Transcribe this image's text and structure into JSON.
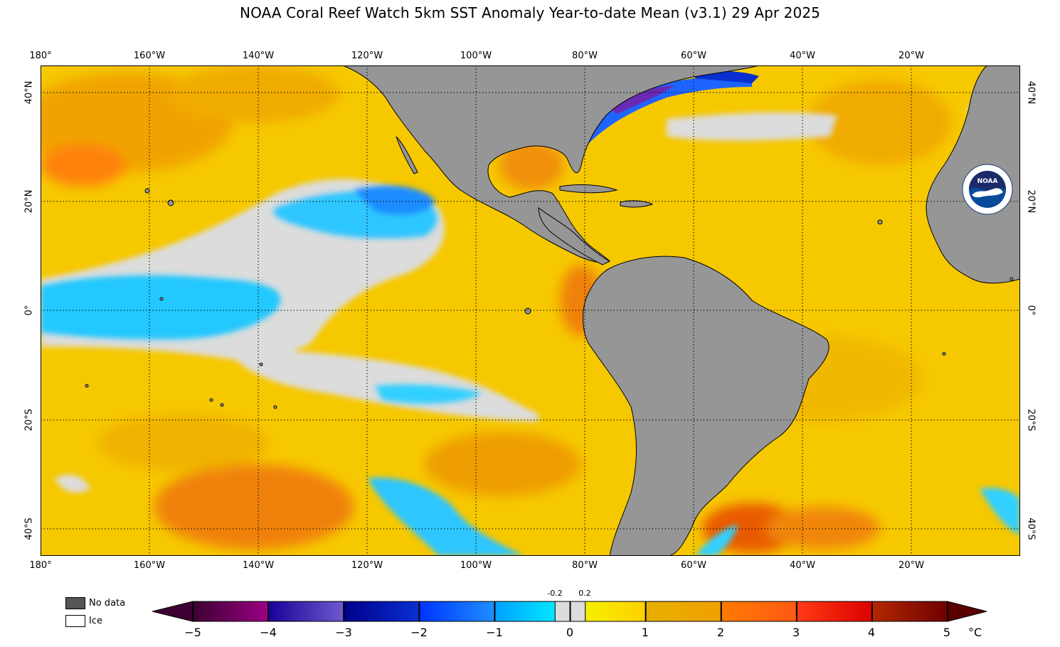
{
  "title": "NOAA Coral Reef Watch 5km SST Anomaly Year-to-date Mean  (v3.1)   29 Apr 2025",
  "map": {
    "lon_ticks": [
      "180°",
      "160°W",
      "140°W",
      "120°W",
      "100°W",
      "80°W",
      "60°W",
      "40°W",
      "20°W"
    ],
    "lat_ticks": [
      "40°N",
      "20°N",
      "0°",
      "20°S",
      "40°S"
    ],
    "extent": {
      "lon_min": -180,
      "lon_max": 0,
      "lat_min": -45,
      "lat_max": 45
    },
    "gridlines": "dotted",
    "colors": {
      "land": "#969696",
      "ocean_warm": "#f5c400",
      "neutral": "#dcdcdc",
      "cool": "#00c8ff",
      "cold": "#1e64ff"
    }
  },
  "legend": {
    "no_data_label": "No data",
    "ice_label": "Ice",
    "no_data_color": "#555555",
    "ice_color": "#ffffff"
  },
  "colorbar": {
    "ticks": [
      "−5",
      "−4",
      "−3",
      "−2",
      "−1",
      "0",
      "1",
      "2",
      "3",
      "4",
      "5"
    ],
    "small_ticks": [
      "-0.2",
      "0.2"
    ],
    "unit": "°C",
    "range": [
      -5,
      5
    ],
    "segments": [
      {
        "from": -5,
        "to": -4,
        "c1": "#3d0033",
        "c2": "#9a0083"
      },
      {
        "from": -4,
        "to": -3,
        "c1": "#1a0099",
        "c2": "#6e5acc"
      },
      {
        "from": -3,
        "to": -2,
        "c1": "#00008a",
        "c2": "#0a2fd1"
      },
      {
        "from": -2,
        "to": -1,
        "c1": "#0033ff",
        "c2": "#1e90ff"
      },
      {
        "from": -1,
        "to": -0.2,
        "c1": "#00a0ff",
        "c2": "#00e8ff"
      },
      {
        "from": -0.2,
        "to": 0.2,
        "c1": "#dcdcdc",
        "c2": "#dcdcdc"
      },
      {
        "from": 0.2,
        "to": 1,
        "c1": "#f5f000",
        "c2": "#ffd000"
      },
      {
        "from": 1,
        "to": 2,
        "c1": "#e6b000",
        "c2": "#f0a000"
      },
      {
        "from": 2,
        "to": 3,
        "c1": "#ff7b00",
        "c2": "#ff5a14"
      },
      {
        "from": 3,
        "to": 4,
        "c1": "#ff3c14",
        "c2": "#dc0000"
      },
      {
        "from": 4,
        "to": 5,
        "c1": "#b42800",
        "c2": "#6e0000"
      }
    ],
    "end_low": "#3d0033",
    "end_high": "#5a0000"
  },
  "logo": {
    "label": "NOAA",
    "ring_text": "NATIONAL OCEANIC AND ATMOSPHERIC ADMINISTRATION · U.S. DEPARTMENT OF COMMERCE"
  }
}
